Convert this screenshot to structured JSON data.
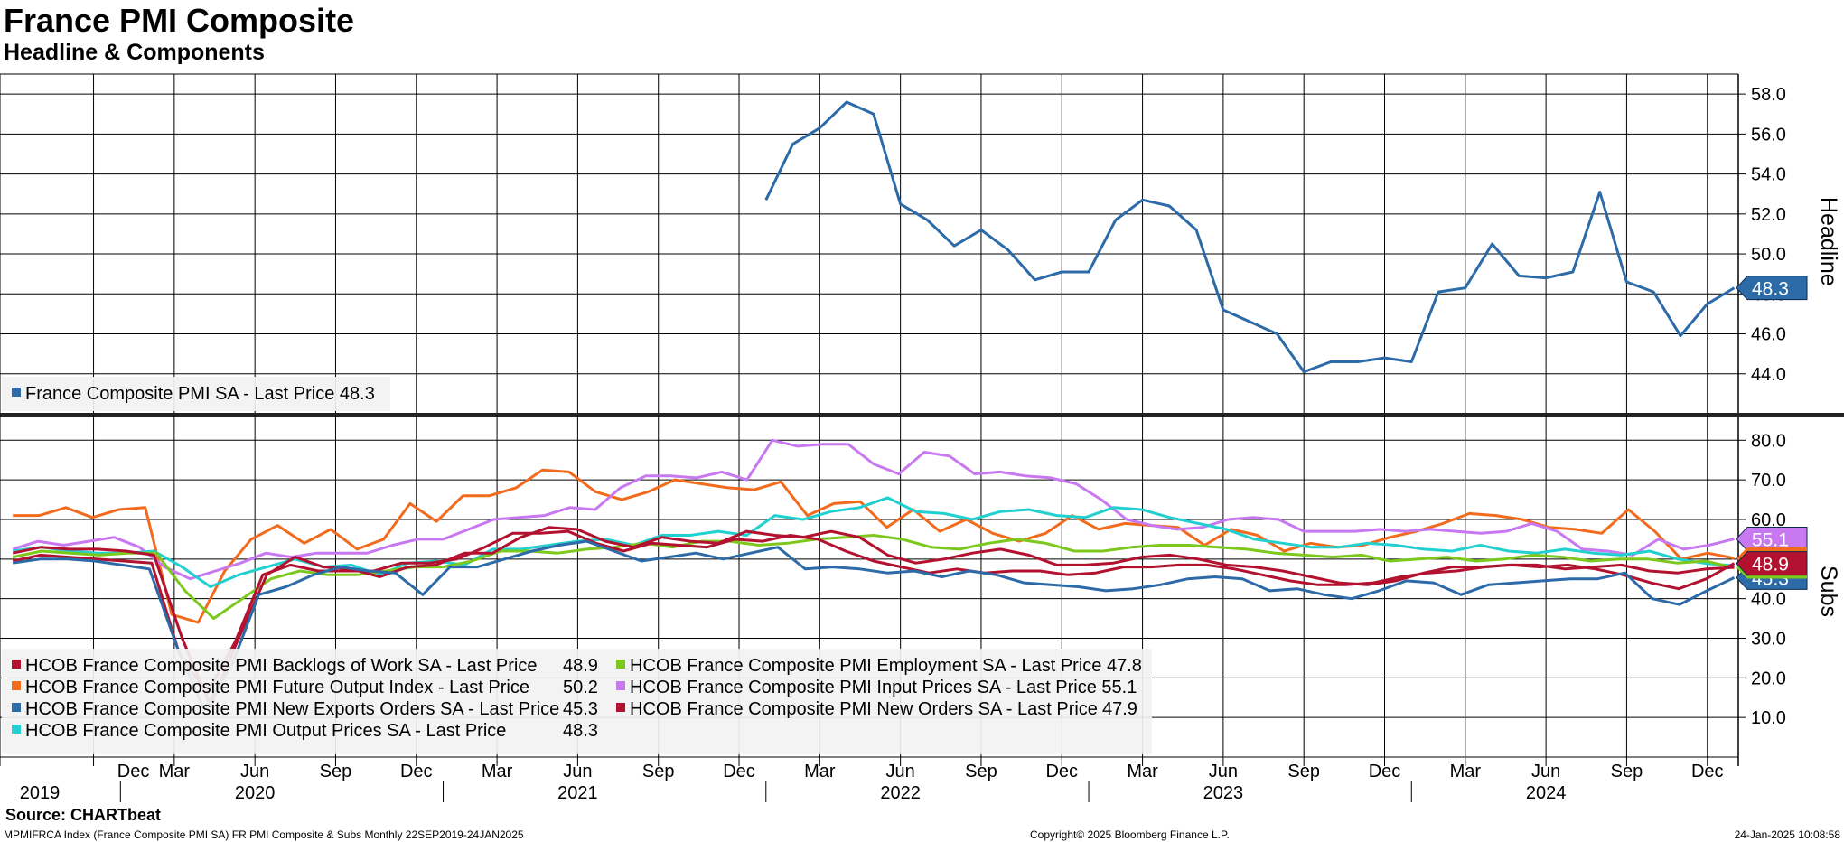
{
  "title": "France PMI Composite",
  "subtitle": "Headline & Components",
  "source": "Source: CHARTbeat",
  "footer": {
    "left": "MPMIFRCA Index (France Composite PMI SA) FR PMI Composite & Subs  Monthly 22SEP2019-24JAN2025",
    "center": "Copyright© 2025 Bloomberg Finance L.P.",
    "right": "24-Jan-2025 10:08:58"
  },
  "x_axis": {
    "month_ticks": [
      "Dec",
      "Mar",
      "Jun",
      "Sep",
      "Dec",
      "Mar",
      "Jun",
      "Sep",
      "Dec",
      "Mar",
      "Jun",
      "Sep",
      "Dec",
      "Mar",
      "Jun",
      "Sep",
      "Dec",
      "Mar",
      "Jun",
      "Sep",
      "Dec"
    ],
    "month_tick_dates": [
      "2019-12",
      "2020-03",
      "2020-06",
      "2020-09",
      "2020-12",
      "2021-03",
      "2021-06",
      "2021-09",
      "2021-12",
      "2022-03",
      "2022-06",
      "2022-09",
      "2022-12",
      "2023-03",
      "2023-06",
      "2023-09",
      "2023-12",
      "2024-03",
      "2024-06",
      "2024-09",
      "2024-12"
    ],
    "year_labels": [
      "2019",
      "2020",
      "2021",
      "2022",
      "2023",
      "2024"
    ],
    "year_label_dates": [
      "2019-10",
      "2020-06",
      "2021-06",
      "2022-06",
      "2023-06",
      "2024-06"
    ]
  },
  "colors": {
    "headline": "#2d6aa8",
    "backlogs": "#b2122f",
    "employment": "#7cc81c",
    "future_output": "#f26b1d",
    "input_prices": "#c878f0",
    "new_exports": "#2d6aa8",
    "new_orders": "#b2122f",
    "output_prices": "#22d0d0"
  },
  "chart_data": [
    {
      "type": "line",
      "name": "headline-panel",
      "y_axis_label": "Headline",
      "ylim": [
        42,
        59
      ],
      "y_ticks": [
        "58.0",
        "56.0",
        "54.0",
        "52.0",
        "50.0",
        "48.0",
        "46.0",
        "44.0"
      ],
      "grid": true,
      "legend_position": "bottom-left",
      "legend": [
        {
          "text": "France Composite PMI SA - Last Price 48.3",
          "color": "#2d6aa8"
        }
      ],
      "last_value_tag": "48.3",
      "series": [
        {
          "name": "France Composite PMI SA",
          "x": [
            "2022-01",
            "2022-02",
            "2022-03",
            "2022-04",
            "2022-05",
            "2022-06",
            "2022-07",
            "2022-08",
            "2022-09",
            "2022-10",
            "2022-11",
            "2022-12",
            "2023-01",
            "2023-02",
            "2023-03",
            "2023-04",
            "2023-05",
            "2023-06",
            "2023-07",
            "2023-08",
            "2023-09",
            "2023-10",
            "2023-11",
            "2023-12",
            "2024-01",
            "2024-02",
            "2024-03",
            "2024-04",
            "2024-05",
            "2024-06",
            "2024-07",
            "2024-08",
            "2024-09",
            "2024-10",
            "2024-11",
            "2024-12",
            "2025-01"
          ],
          "values": [
            52.7,
            55.5,
            56.3,
            57.6,
            57.0,
            52.5,
            51.7,
            50.4,
            51.2,
            50.2,
            48.7,
            49.1,
            49.1,
            51.7,
            52.7,
            52.4,
            51.2,
            47.2,
            46.6,
            46.0,
            44.1,
            44.6,
            44.6,
            44.8,
            44.6,
            48.1,
            48.3,
            50.5,
            48.9,
            48.8,
            49.1,
            53.1,
            48.6,
            48.1,
            45.9,
            47.5,
            48.3
          ]
        }
      ]
    },
    {
      "type": "line",
      "name": "subs-panel",
      "y_axis_label": "Subs",
      "ylim": [
        0,
        86
      ],
      "y_ticks": [
        "80.0",
        "70.0",
        "60.0",
        "50.0",
        "40.0",
        "30.0",
        "20.0",
        "10.0"
      ],
      "grid": true,
      "legend_position": "bottom-left",
      "legend": [
        {
          "text": "HCOB France Composite PMI Backlogs of Work SA - Last Price",
          "value": "48.9",
          "color": "#b2122f"
        },
        {
          "text": "HCOB France Composite PMI Future Output Index - Last Price",
          "value": "50.2",
          "color": "#f26b1d"
        },
        {
          "text": "HCOB France Composite PMI New Exports Orders SA - Last Price",
          "value": "45.3",
          "color": "#2d6aa8"
        },
        {
          "text": "HCOB France Composite PMI Output Prices SA - Last Price",
          "value": "48.3",
          "color": "#22d0d0"
        },
        {
          "text": "HCOB France Composite PMI Employment SA - Last Price 47.8",
          "value": "",
          "color": "#7cc81c"
        },
        {
          "text": "HCOB France Composite PMI Input Prices SA - Last Price 55.1",
          "value": "",
          "color": "#c878f0"
        },
        {
          "text": "HCOB France Composite PMI New Orders SA - Last Price",
          "value": "47.9",
          "color": "#b2122f"
        }
      ],
      "last_value_tags": [
        {
          "text": "55.1",
          "color": "#c878f0"
        },
        {
          "text": "48.9",
          "color": "#b2122f"
        },
        {
          "text": "45.3",
          "color": "#2d6aa8"
        }
      ],
      "series": [
        {
          "name": "HCOB France Composite PMI Future Output Index",
          "color": "#f26b1d",
          "x_start": "2019-09",
          "values": [
            61,
            61,
            63,
            60.5,
            62.5,
            63,
            36,
            34,
            47,
            55,
            58.5,
            54,
            57.5,
            52.5,
            55,
            64,
            59.5,
            66,
            66,
            68,
            72.5,
            72,
            67,
            65,
            67,
            70,
            69,
            68,
            67.5,
            69.5,
            61,
            64,
            64.5,
            58,
            62.5,
            57,
            60,
            56.5,
            54.5,
            56.5,
            61,
            57.5,
            59,
            58.5,
            58,
            53.5,
            57.5,
            56,
            52,
            54,
            53,
            53.5,
            55.5,
            57,
            59,
            61.5,
            61,
            60,
            58,
            57.5,
            56.5,
            62.5,
            57,
            50,
            51.5,
            50.2
          ]
        },
        {
          "name": "HCOB France Composite PMI Input Prices SA",
          "color": "#c878f0",
          "x_start": "2019-09",
          "values": [
            52.5,
            54.5,
            53.5,
            54.5,
            55.5,
            53,
            48,
            45,
            47,
            49,
            51.5,
            50.5,
            51.5,
            51.5,
            51.5,
            53.5,
            55,
            55,
            57.5,
            60,
            60.5,
            61,
            63,
            62.5,
            68,
            71,
            71,
            70.5,
            72,
            70,
            80,
            78.5,
            79,
            79,
            74,
            71.5,
            77,
            76,
            71.5,
            72,
            71,
            70.5,
            69,
            65,
            60,
            58.5,
            57.5,
            58,
            60,
            60.5,
            60,
            57,
            57,
            57,
            57.5,
            57,
            57.5,
            57,
            56.5,
            57,
            59,
            57,
            52.5,
            52,
            51,
            55,
            52.5,
            53.5,
            55.1
          ]
        },
        {
          "name": "HCOB France Composite PMI Output Prices SA",
          "color": "#22d0d0",
          "x_start": "2019-09",
          "values": [
            52,
            53,
            52,
            51.5,
            51.5,
            52,
            48,
            43,
            46,
            48,
            50,
            48,
            48.5,
            46,
            49,
            49.5,
            48.5,
            52.5,
            52.5,
            53.5,
            54.5,
            55,
            53.5,
            56,
            56,
            57,
            56,
            61,
            60,
            62,
            63,
            65.5,
            62,
            61.5,
            60,
            62,
            62.5,
            61,
            60.5,
            63,
            62.5,
            60.5,
            59,
            57.5,
            55,
            54,
            53,
            53,
            54,
            53.5,
            52.5,
            52,
            53.5,
            52,
            51.5,
            52.5,
            51.5,
            51,
            52,
            50,
            48.9,
            48.3
          ]
        },
        {
          "name": "HCOB France Composite PMI Employment SA",
          "color": "#7cc81c",
          "x_start": "2019-09",
          "values": [
            50.5,
            52,
            51.5,
            51,
            51.5,
            51.5,
            42,
            35,
            40,
            45,
            47,
            46,
            46,
            47,
            48,
            48,
            49.5,
            52,
            52,
            51.5,
            52.5,
            53,
            54,
            53,
            54.5,
            54.5,
            53.5,
            54,
            55,
            55.5,
            56,
            55,
            53,
            52.5,
            54,
            55,
            54,
            52,
            52,
            53,
            53.5,
            53.5,
            53,
            52.5,
            51.5,
            51,
            50.5,
            51,
            49.5,
            50,
            50.5,
            49.5,
            50,
            51,
            50.5,
            49.5,
            50,
            50,
            49,
            49.5,
            47.8
          ]
        },
        {
          "name": "HCOB France Composite PMI New Orders SA",
          "color": "#b2122f",
          "x_start": "2019-09",
          "values": [
            51.5,
            53,
            52.5,
            52.5,
            52,
            51,
            30,
            13,
            30,
            46,
            50.5,
            48,
            47.5,
            45.5,
            48,
            48.5,
            51.5,
            51.5,
            55.5,
            58,
            57.5,
            54.5,
            53,
            55.5,
            54.5,
            54,
            57,
            56,
            55.5,
            57,
            55.5,
            51,
            49,
            50,
            51.5,
            52.5,
            51,
            48.5,
            48.5,
            49,
            50.5,
            51,
            50,
            48.5,
            48,
            47,
            45.5,
            44,
            43.5,
            44.5,
            46.5,
            48,
            48,
            48.5,
            48.5,
            47.5,
            48,
            48.5,
            47,
            46.5,
            47.5,
            47.9
          ]
        },
        {
          "name": "HCOB France Composite PMI Backlogs of Work SA",
          "color": "#b2122f",
          "x_start": "2019-09",
          "values": [
            49.5,
            51,
            50.5,
            50,
            49.5,
            49,
            26,
            16,
            29,
            46,
            48.5,
            47,
            47,
            47,
            49,
            49,
            50,
            53,
            56.5,
            56.5,
            57,
            54,
            52,
            54,
            53.5,
            53,
            55,
            54.5,
            56,
            55,
            52,
            49.5,
            48,
            46.5,
            47.5,
            46.5,
            47,
            47,
            46,
            46.5,
            48,
            48,
            48.5,
            48.5,
            47.5,
            46,
            44.5,
            43.5,
            43.5,
            44,
            45.5,
            46.5,
            47,
            48,
            48.5,
            48,
            48.5,
            47.5,
            46,
            44,
            42.5,
            45,
            48.9
          ]
        },
        {
          "name": "HCOB France Composite PMI New Exports Orders SA",
          "color": "#2d6aa8",
          "x_start": "2019-09",
          "values": [
            49,
            50,
            50,
            49.5,
            48.5,
            47.5,
            28,
            12,
            23,
            41,
            43,
            46,
            48,
            47,
            46.5,
            41,
            48,
            48,
            50,
            52,
            53.5,
            54.5,
            52,
            49.5,
            50.5,
            51.5,
            50,
            51.5,
            53,
            47.5,
            48,
            47.5,
            46.5,
            47,
            45.5,
            47,
            46,
            44,
            43.5,
            43,
            42,
            42.5,
            43.5,
            45,
            45.5,
            45,
            42,
            42.5,
            41,
            40,
            42,
            44.5,
            44,
            41,
            43.5,
            44,
            44.5,
            45,
            45,
            46.5,
            40,
            38.5,
            42,
            45.3
          ]
        }
      ]
    }
  ]
}
